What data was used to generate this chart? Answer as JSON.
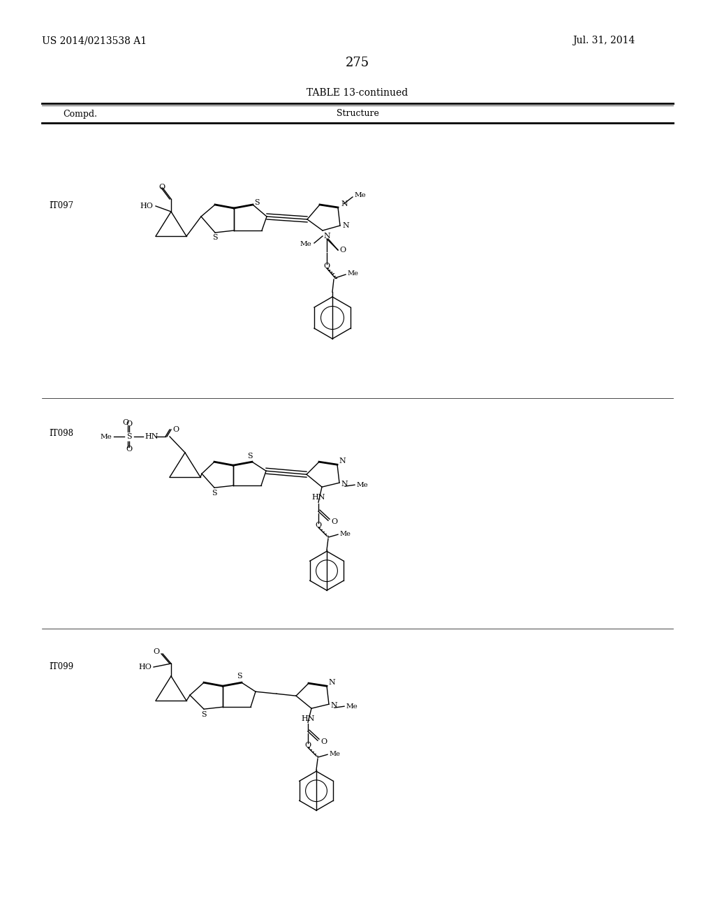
{
  "page_number": "275",
  "patent_number": "US 2014/0213538 A1",
  "patent_date": "Jul. 31, 2014",
  "table_title": "TABLE 13-continued",
  "col1_header": "Compd.",
  "col2_header": "Structure",
  "compounds": [
    "IT097",
    "IT098",
    "IT099"
  ],
  "background_color": "#ffffff",
  "text_color": "#000000",
  "line_color": "#000000",
  "font_size_header": 11,
  "font_size_body": 9,
  "font_size_page": 12
}
